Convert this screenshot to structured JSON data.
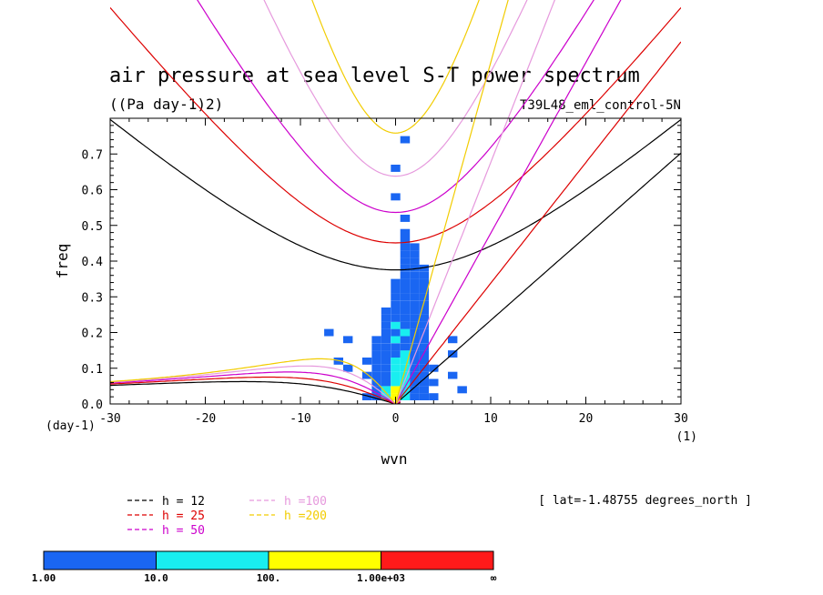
{
  "chart_data": {
    "type": "heatmap",
    "title": "air pressure at sea level S-T power spectrum",
    "units_label": "((Pa day-1)2)",
    "run_label": "T39L48_eml_control-5N",
    "xlabel": "wvn",
    "ylabel": "freq",
    "x_unit": "(1)",
    "y_unit": "(day-1)",
    "xlim": [
      -30,
      30
    ],
    "ylim": [
      0,
      0.8
    ],
    "x_ticks": [
      "-30",
      "-20",
      "-10",
      "0",
      "10",
      "20",
      "30"
    ],
    "y_ticks": [
      "0.0",
      "0.1",
      "0.2",
      "0.3",
      "0.4",
      "0.5",
      "0.6",
      "0.7"
    ],
    "lat_note": "[ lat=-1.48755 degrees_north ]",
    "dispersion_curves": [
      {
        "label": "h = 12",
        "h": 12,
        "color": "#000000"
      },
      {
        "label": "h = 25",
        "h": 25,
        "color": "#dd0000"
      },
      {
        "label": "h = 50",
        "h": 50,
        "color": "#cc00cc"
      },
      {
        "label": "h =100",
        "h": 100,
        "color": "#e699dd"
      },
      {
        "label": "h =200",
        "h": 200,
        "color": "#f2cc00"
      }
    ],
    "colorbar": {
      "labels": [
        "1.00",
        "10.0",
        "100.",
        "1.00e+03",
        "∞"
      ],
      "colors": [
        "#1a66f2",
        "#19eef0",
        "#ffff00",
        "#ff1a1a"
      ]
    },
    "spectrum_cells": [
      [
        -3,
        0.02,
        1
      ],
      [
        -2,
        0.02,
        1
      ],
      [
        -1,
        0.02,
        2
      ],
      [
        0,
        0.02,
        3
      ],
      [
        1,
        0.02,
        2
      ],
      [
        2,
        0.02,
        1
      ],
      [
        3,
        0.02,
        1
      ],
      [
        4,
        0.02,
        1
      ],
      [
        -2,
        0.04,
        1
      ],
      [
        -1,
        0.04,
        2
      ],
      [
        0,
        0.04,
        3
      ],
      [
        1,
        0.04,
        2
      ],
      [
        2,
        0.04,
        1
      ],
      [
        3,
        0.04,
        1
      ],
      [
        -2,
        0.06,
        1
      ],
      [
        -1,
        0.06,
        1
      ],
      [
        0,
        0.06,
        2
      ],
      [
        1,
        0.06,
        2
      ],
      [
        2,
        0.06,
        1
      ],
      [
        3,
        0.06,
        1
      ],
      [
        4,
        0.06,
        1
      ],
      [
        -3,
        0.08,
        1
      ],
      [
        -2,
        0.08,
        1
      ],
      [
        -1,
        0.08,
        1
      ],
      [
        0,
        0.08,
        2
      ],
      [
        1,
        0.08,
        2
      ],
      [
        2,
        0.08,
        1
      ],
      [
        3,
        0.08,
        1
      ],
      [
        -2,
        0.1,
        1
      ],
      [
        -1,
        0.1,
        1
      ],
      [
        0,
        0.1,
        2
      ],
      [
        1,
        0.1,
        2
      ],
      [
        2,
        0.1,
        1
      ],
      [
        3,
        0.1,
        1
      ],
      [
        4,
        0.1,
        1
      ],
      [
        -3,
        0.12,
        1
      ],
      [
        -2,
        0.12,
        1
      ],
      [
        -1,
        0.12,
        1
      ],
      [
        0,
        0.12,
        2
      ],
      [
        1,
        0.12,
        2
      ],
      [
        2,
        0.12,
        1
      ],
      [
        3,
        0.12,
        1
      ],
      [
        -2,
        0.14,
        1
      ],
      [
        -1,
        0.14,
        1
      ],
      [
        0,
        0.14,
        1
      ],
      [
        1,
        0.14,
        2
      ],
      [
        2,
        0.14,
        1
      ],
      [
        3,
        0.14,
        1
      ],
      [
        -2,
        0.16,
        1
      ],
      [
        -1,
        0.16,
        1
      ],
      [
        0,
        0.16,
        1
      ],
      [
        1,
        0.16,
        1
      ],
      [
        2,
        0.16,
        1
      ],
      [
        3,
        0.16,
        1
      ],
      [
        -2,
        0.18,
        1
      ],
      [
        -1,
        0.18,
        1
      ],
      [
        0,
        0.18,
        2
      ],
      [
        1,
        0.18,
        1
      ],
      [
        2,
        0.18,
        1
      ],
      [
        3,
        0.18,
        1
      ],
      [
        -1,
        0.2,
        1
      ],
      [
        0,
        0.2,
        1
      ],
      [
        1,
        0.2,
        2
      ],
      [
        2,
        0.2,
        1
      ],
      [
        3,
        0.2,
        1
      ],
      [
        -1,
        0.22,
        1
      ],
      [
        0,
        0.22,
        2
      ],
      [
        1,
        0.22,
        1
      ],
      [
        2,
        0.22,
        1
      ],
      [
        3,
        0.22,
        1
      ],
      [
        -1,
        0.24,
        1
      ],
      [
        0,
        0.24,
        1
      ],
      [
        1,
        0.24,
        1
      ],
      [
        2,
        0.24,
        1
      ],
      [
        3,
        0.24,
        1
      ],
      [
        -1,
        0.26,
        1
      ],
      [
        0,
        0.26,
        1
      ],
      [
        1,
        0.26,
        1
      ],
      [
        2,
        0.26,
        1
      ],
      [
        3,
        0.26,
        1
      ],
      [
        0,
        0.28,
        1
      ],
      [
        1,
        0.28,
        1
      ],
      [
        2,
        0.28,
        1
      ],
      [
        3,
        0.28,
        1
      ],
      [
        0,
        0.3,
        1
      ],
      [
        1,
        0.3,
        1
      ],
      [
        2,
        0.3,
        1
      ],
      [
        3,
        0.3,
        1
      ],
      [
        0,
        0.32,
        1
      ],
      [
        1,
        0.32,
        1
      ],
      [
        2,
        0.32,
        1
      ],
      [
        3,
        0.32,
        1
      ],
      [
        0,
        0.34,
        1
      ],
      [
        1,
        0.34,
        1
      ],
      [
        2,
        0.34,
        1
      ],
      [
        3,
        0.34,
        1
      ],
      [
        1,
        0.36,
        1
      ],
      [
        2,
        0.36,
        1
      ],
      [
        3,
        0.36,
        1
      ],
      [
        1,
        0.38,
        1
      ],
      [
        2,
        0.38,
        1
      ],
      [
        3,
        0.38,
        1
      ],
      [
        1,
        0.4,
        1
      ],
      [
        2,
        0.4,
        1
      ],
      [
        1,
        0.42,
        1
      ],
      [
        2,
        0.42,
        1
      ],
      [
        1,
        0.44,
        1
      ],
      [
        2,
        0.44,
        1
      ],
      [
        1,
        0.46,
        1
      ],
      [
        1,
        0.48,
        1
      ],
      [
        1,
        0.52,
        1
      ],
      [
        0,
        0.58,
        1
      ],
      [
        0,
        0.66,
        1
      ],
      [
        1,
        0.74,
        1
      ],
      [
        -5,
        0.1,
        1
      ],
      [
        -6,
        0.12,
        1
      ],
      [
        -5,
        0.18,
        1
      ],
      [
        -7,
        0.2,
        1
      ],
      [
        6,
        0.14,
        1
      ],
      [
        6,
        0.18,
        1
      ],
      [
        6,
        0.08,
        1
      ],
      [
        7,
        0.04,
        1
      ]
    ]
  }
}
